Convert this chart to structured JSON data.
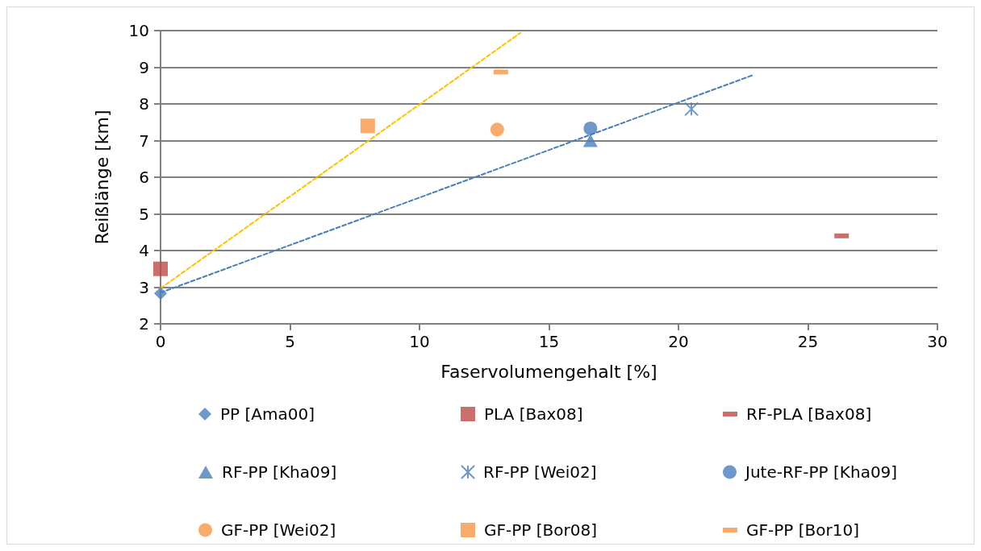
{
  "chart_data": {
    "type": "scatter",
    "xlabel": "Faservolumengehalt [%]",
    "ylabel": "Reißlänge [km]",
    "xlim": [
      0,
      30
    ],
    "xticks": [
      0,
      5,
      10,
      15,
      20,
      25,
      30
    ],
    "ylim": [
      2,
      10
    ],
    "yticks": [
      2,
      3,
      4,
      5,
      6,
      7,
      8,
      9,
      10
    ],
    "grid": "y",
    "legend": "bottom",
    "series": [
      {
        "name": "PP [Ama00]",
        "color": "#4a7ebb",
        "marker": "diamond",
        "x": [
          0
        ],
        "values": [
          2.83
        ]
      },
      {
        "name": "PLA [Bax08]",
        "color": "#be4b48",
        "marker": "square",
        "x": [
          0
        ],
        "values": [
          3.5
        ]
      },
      {
        "name": "RF-PLA [Bax08]",
        "color": "#be4b48",
        "x": [
          26.3
        ],
        "values": [
          4.4
        ]
      },
      {
        "name": "RF-PP [Kha09]",
        "color": "#4a7ebb",
        "marker": "triangle",
        "x": [
          16.6
        ],
        "values": [
          7.0
        ]
      },
      {
        "name": "RF-PP [Wei02]",
        "color": "#4a7ebb",
        "marker": "cross",
        "x": [
          20.5
        ],
        "values": [
          7.86
        ]
      },
      {
        "name": "Jute-RF-PP [Kha09]",
        "color": "#4a7ebb",
        "marker": "circle",
        "x": [
          16.6
        ],
        "values": [
          7.33
        ]
      },
      {
        "name": "GF-PP [Wei02]",
        "color": "#f79646",
        "marker": "circle",
        "x": [
          13.0
        ],
        "values": [
          7.3
        ]
      },
      {
        "name": "GF-PP [Bor08]",
        "color": "#f79646",
        "marker": "square",
        "x": [
          8.0
        ],
        "values": [
          7.4
        ]
      },
      {
        "name": "GF-PP [Bor10]",
        "color": "#f79646",
        "x": [
          13.14
        ],
        "values": [
          8.87
        ]
      },
      {
        "type": "line",
        "color": "#4a7ebb",
        "line_style": "dashed",
        "marker": "none",
        "x": [
          0,
          22.85
        ],
        "values": [
          2.85,
          8.78
        ]
      },
      {
        "type": "line",
        "color": "#ffc000",
        "line_style": "dashed",
        "marker": "none",
        "x": [
          0,
          13.9
        ],
        "values": [
          2.97,
          9.94
        ]
      }
    ]
  }
}
